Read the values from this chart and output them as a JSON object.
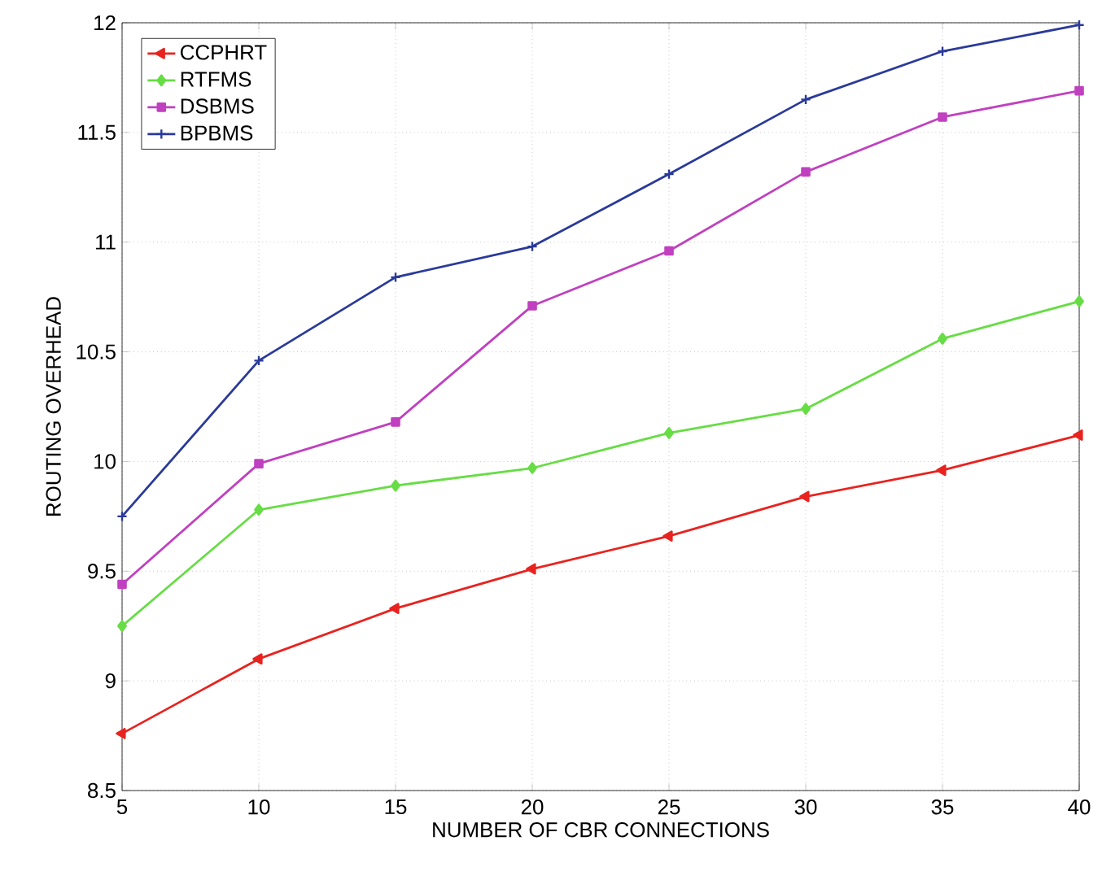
{
  "chart_data": {
    "type": "line",
    "xlabel": "NUMBER OF CBR CONNECTIONS",
    "ylabel": "ROUTING OVERHEAD",
    "x": [
      5,
      10,
      15,
      20,
      25,
      30,
      35,
      40
    ],
    "series": [
      {
        "name": "CCPHRT",
        "color": "#e8231f",
        "marker": "triangle",
        "values": [
          8.76,
          9.1,
          9.33,
          9.51,
          9.66,
          9.84,
          9.96,
          10.12
        ]
      },
      {
        "name": "RTFMS",
        "color": "#66dd44",
        "marker": "diamond",
        "values": [
          9.25,
          9.78,
          9.89,
          9.97,
          10.13,
          10.24,
          10.56,
          10.73
        ]
      },
      {
        "name": "DSBMS",
        "color": "#c040c0",
        "marker": "square",
        "values": [
          9.44,
          9.99,
          10.18,
          10.71,
          10.96,
          11.32,
          11.57,
          11.69
        ]
      },
      {
        "name": "BPBMS",
        "color": "#2a3a9a",
        "marker": "cross",
        "values": [
          9.75,
          10.46,
          10.84,
          10.98,
          11.31,
          11.65,
          11.87,
          11.99
        ]
      }
    ],
    "xlim": [
      5,
      40
    ],
    "ylim": [
      8.5,
      12
    ],
    "xticks": [
      5,
      10,
      15,
      20,
      25,
      30,
      35,
      40
    ],
    "yticks": [
      8.5,
      9,
      9.5,
      10,
      10.5,
      11,
      11.5,
      12
    ],
    "grid": true,
    "legend": "top left",
    "line_style": "solid"
  }
}
